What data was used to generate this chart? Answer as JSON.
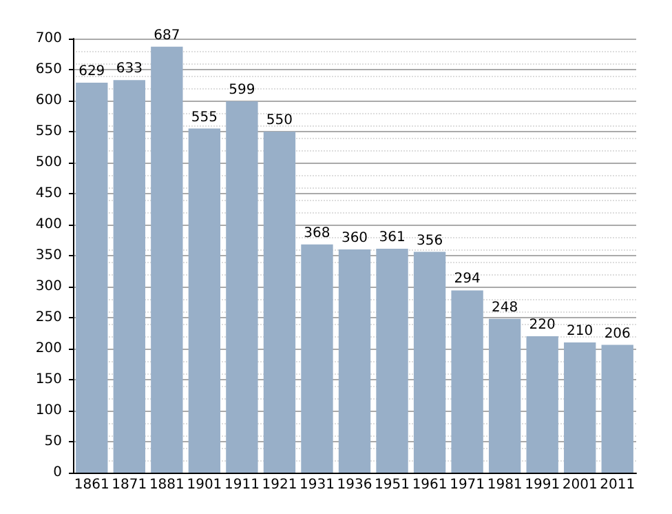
{
  "chart_data": {
    "type": "bar",
    "categories": [
      "1861",
      "1871",
      "1881",
      "1901",
      "1911",
      "1921",
      "1931",
      "1936",
      "1951",
      "1961",
      "1971",
      "1981",
      "1991",
      "2001",
      "2011"
    ],
    "values": [
      629,
      633,
      687,
      555,
      599,
      550,
      368,
      360,
      361,
      356,
      294,
      248,
      220,
      210,
      206
    ],
    "color": "#98afc8",
    "ylim": [
      0,
      700
    ],
    "yticks": [
      0,
      50,
      100,
      150,
      200,
      250,
      300,
      350,
      400,
      450,
      500,
      550,
      600,
      650,
      700
    ],
    "grid": "y",
    "data_labels": true
  }
}
